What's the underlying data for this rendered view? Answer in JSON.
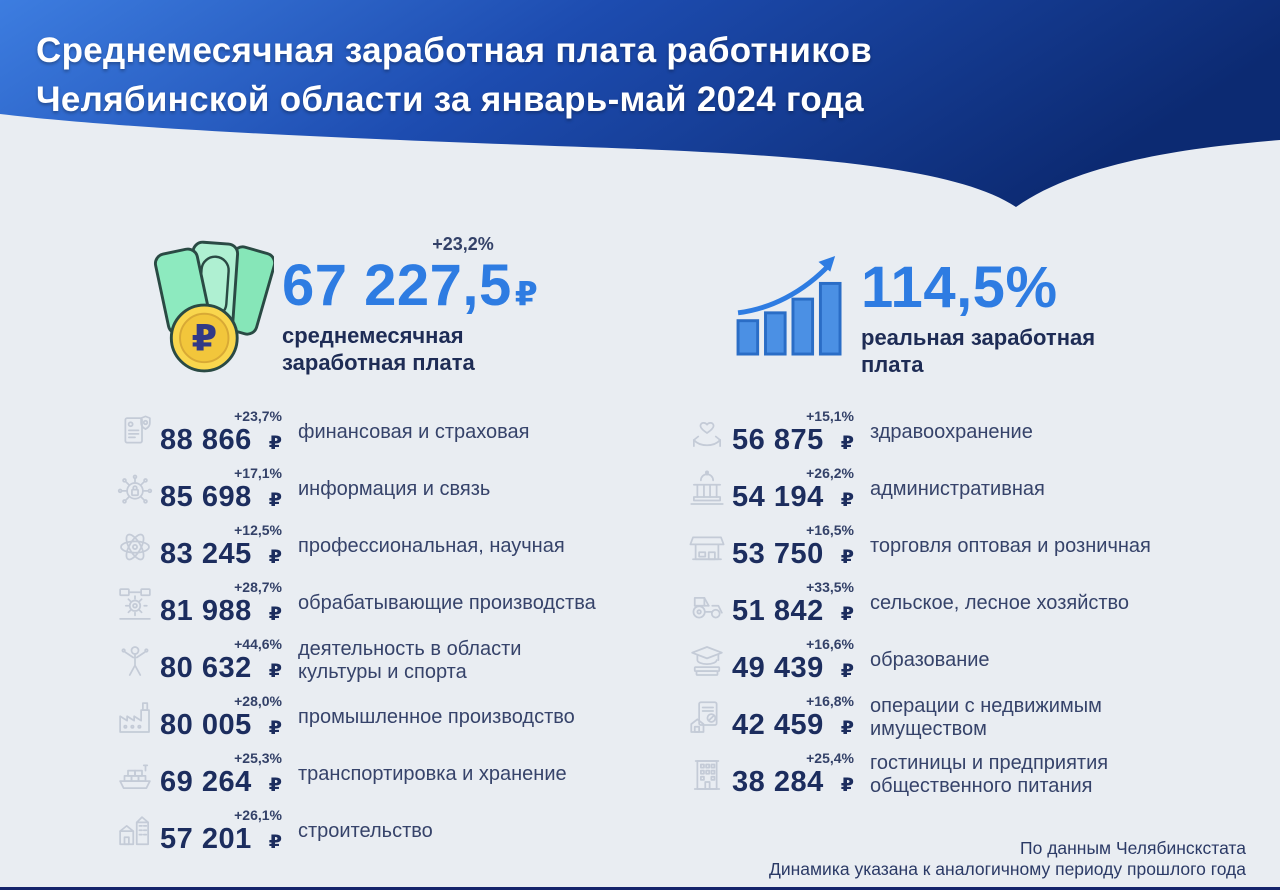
{
  "header": {
    "title_line1": "Среднемесячная заработная плата работников",
    "title_line2": "Челябинской области за январь-май 2024 года"
  },
  "hero": {
    "salary": {
      "change": "+23,2%",
      "value": "67 227,5",
      "currency": "₽",
      "label": "среднемесячная\nзаработная плата",
      "icon": "money-ruble"
    },
    "real_wage": {
      "value": "114,5%",
      "label": "реальная заработная\nплата",
      "icon": "growth-chart"
    }
  },
  "columns": {
    "left": [
      {
        "change": "+23,7%",
        "value": "88 866",
        "currency": "₽",
        "label": "финансовая и страховая",
        "icon": "finance-shield"
      },
      {
        "change": "+17,1%",
        "value": "85 698",
        "currency": "₽",
        "label": "информация и связь",
        "icon": "info-network"
      },
      {
        "change": "+12,5%",
        "value": "83 245",
        "currency": "₽",
        "label": "профессиональная, научная",
        "icon": "science-atom"
      },
      {
        "change": "+28,7%",
        "value": "81 988",
        "currency": "₽",
        "label": "обрабатывающие производства",
        "icon": "manufacturing-gear"
      },
      {
        "change": "+44,6%",
        "value": "80 632",
        "currency": "₽",
        "label": "деятельность в области\nкультуры и спорта",
        "icon": "culture-sport-person"
      },
      {
        "change": "+28,0%",
        "value": "80 005",
        "currency": "₽",
        "label": "промышленное производство",
        "icon": "industry-factory"
      },
      {
        "change": "+25,3%",
        "value": "69 264",
        "currency": "₽",
        "label": "транспортировка и хранение",
        "icon": "transport-ship"
      },
      {
        "change": "+26,1%",
        "value": "57 201",
        "currency": "₽",
        "label": "строительство",
        "icon": "construction-buildings"
      }
    ],
    "right": [
      {
        "change": "+15,1%",
        "value": "56 875",
        "currency": "₽",
        "label": "здравоохранение",
        "icon": "health-hands-heart"
      },
      {
        "change": "+26,2%",
        "value": "54 194",
        "currency": "₽",
        "label": "административная",
        "icon": "administration-building"
      },
      {
        "change": "+16,5%",
        "value": "53 750",
        "currency": "₽",
        "label": "торговля оптовая и розничная",
        "icon": "trade-store"
      },
      {
        "change": "+33,5%",
        "value": "51 842",
        "currency": "₽",
        "label": "сельское, лесное хозяйство",
        "icon": "agriculture-tractor"
      },
      {
        "change": "+16,6%",
        "value": "49 439",
        "currency": "₽",
        "label": "образование",
        "icon": "education-books"
      },
      {
        "change": "+16,8%",
        "value": "42 459",
        "currency": "₽",
        "label": "операции с недвижимым\nимуществом",
        "icon": "realty-house-document"
      },
      {
        "change": "+25,4%",
        "value": "38 284",
        "currency": "₽",
        "label": "гостиницы и предприятия\nобщественного питания",
        "icon": "hotel-building"
      }
    ]
  },
  "footer": {
    "line1": "По данным Челябинскстата",
    "line2": "Динамика указана к аналогичному периоду прошлого года"
  },
  "colors": {
    "accent_blue": "#2e7ce2",
    "navy_text": "#1c2d5e",
    "label_text": "#36436a",
    "background": "#e9edf2",
    "header_gradient_start": "#3d7de0",
    "header_gradient_mid": "#1d4cb0",
    "header_gradient_end": "#0c2a72",
    "icon_gray": "#c4cbd7",
    "bottom_bar": "#15246b"
  },
  "chart_data": {
    "type": "table",
    "title": "Среднемесячная заработная плата работников Челябинской области за январь-май 2024 года",
    "summary": {
      "average_monthly_salary_rub": 67227.5,
      "average_salary_change_pct": 23.2,
      "real_wage_index_pct": 114.5
    },
    "categories": [
      "финансовая и страховая",
      "информация и связь",
      "профессиональная, научная",
      "обрабатывающие производства",
      "деятельность в области культуры и спорта",
      "промышленное производство",
      "транспортировка и хранение",
      "строительство",
      "здравоохранение",
      "административная",
      "торговля оптовая и розничная",
      "сельское, лесное хозяйство",
      "образование",
      "операции с недвижимым имуществом",
      "гостиницы и предприятия общественного питания"
    ],
    "series": [
      {
        "name": "Зарплата, ₽",
        "values": [
          88866,
          85698,
          83245,
          81988,
          80632,
          80005,
          69264,
          57201,
          56875,
          54194,
          53750,
          51842,
          49439,
          42459,
          38284
        ]
      },
      {
        "name": "Изменение к прошлому году, %",
        "values": [
          23.7,
          17.1,
          12.5,
          28.7,
          44.6,
          28.0,
          25.3,
          26.1,
          15.1,
          26.2,
          16.5,
          33.5,
          16.6,
          16.8,
          25.4
        ]
      }
    ],
    "notes": [
      "По данным Челябинскстата",
      "Динамика указана к аналогичному периоду прошлого года"
    ]
  }
}
